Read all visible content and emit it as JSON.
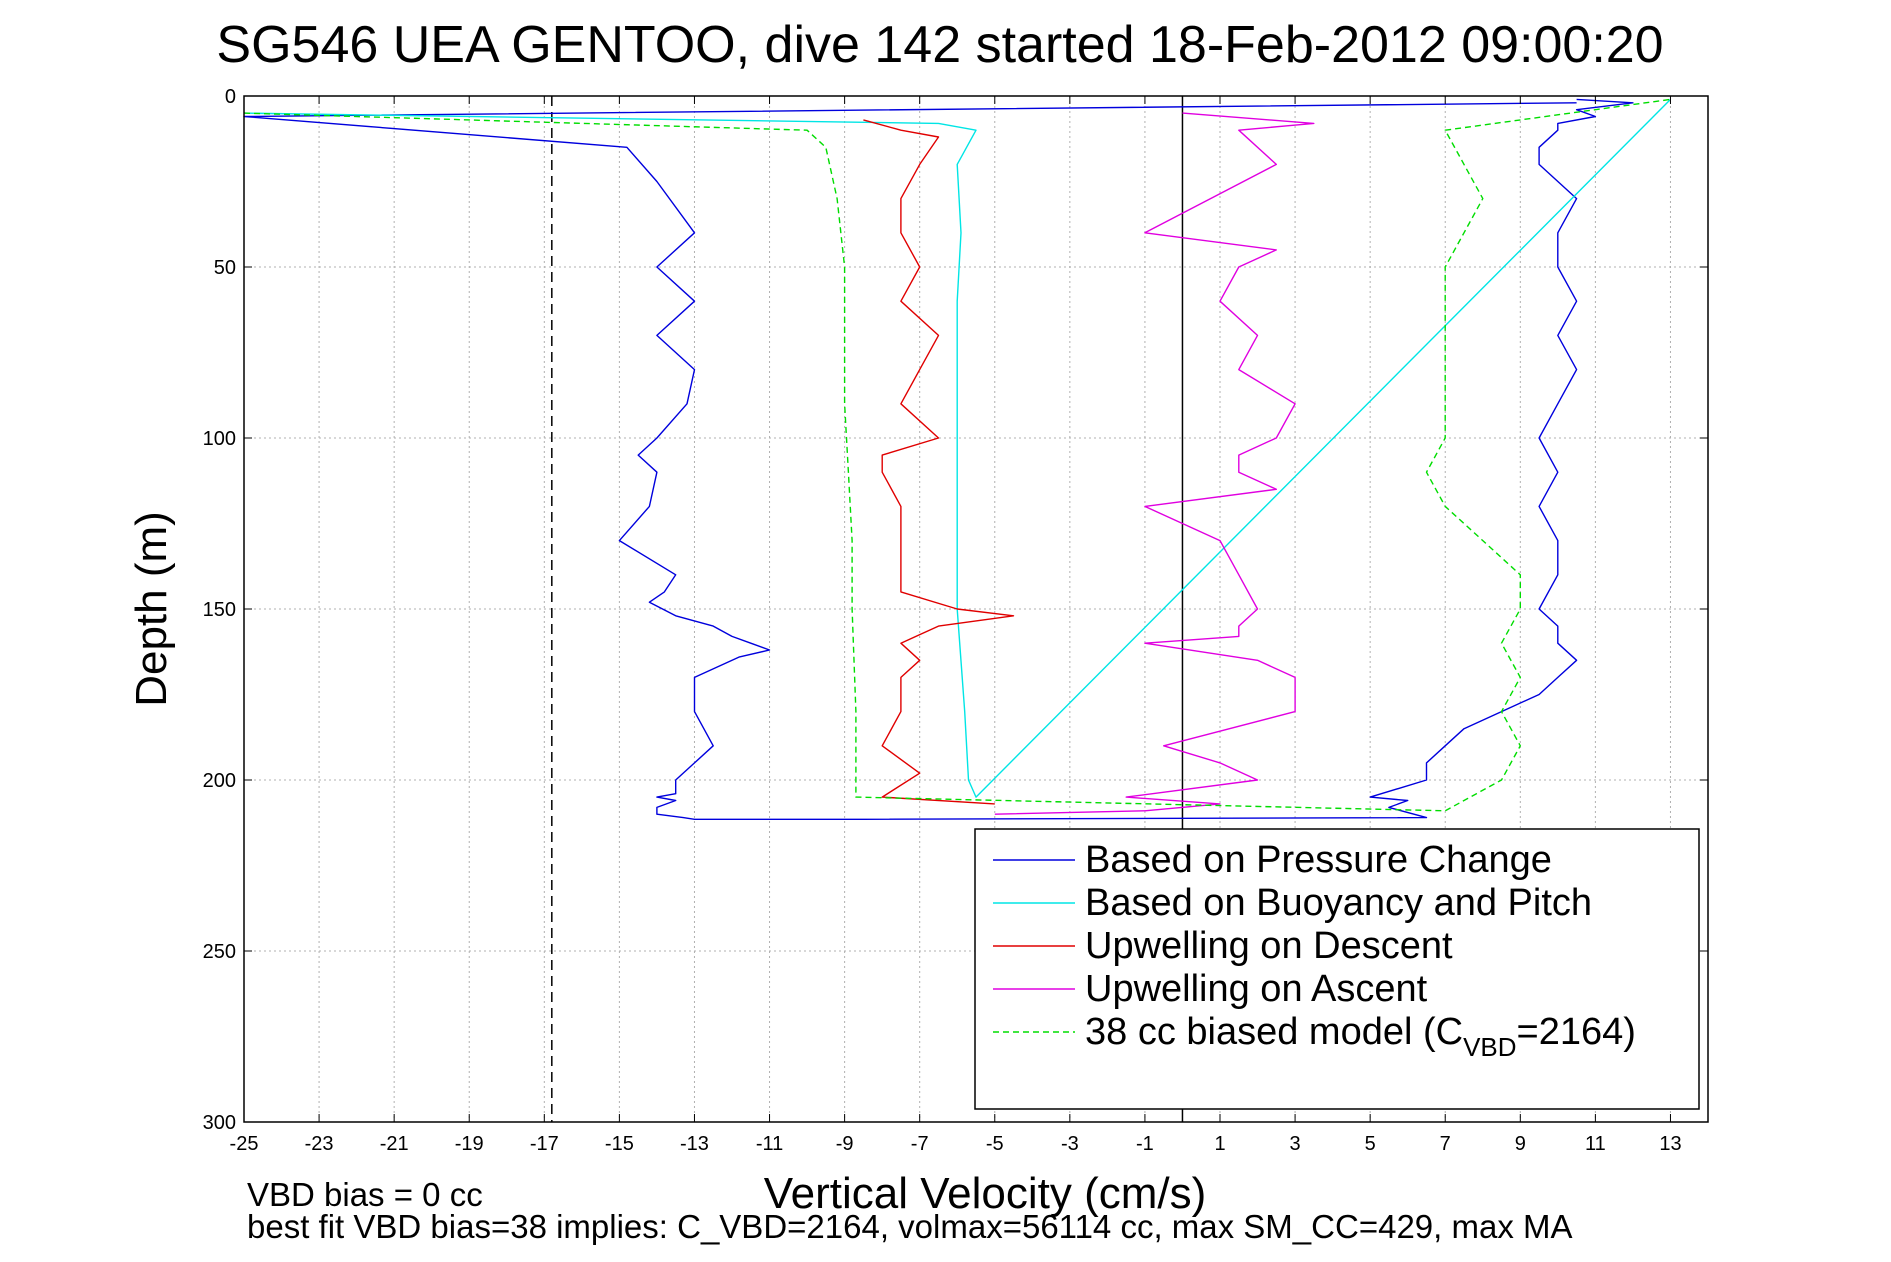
{
  "chart_data": {
    "type": "line",
    "title": "SG546 UEA GENTOO, dive 142 started 18-Feb-2012 09:00:20",
    "xlabel": "Vertical Velocity (cm/s)",
    "ylabel": "Depth (m)",
    "xlim": [
      -25,
      14
    ],
    "ylim": [
      300,
      0
    ],
    "y_reversed": true,
    "grid": true,
    "x_ticks": [
      -25,
      -23,
      -21,
      -19,
      -17,
      -15,
      -13,
      -11,
      -9,
      -7,
      -5,
      -3,
      -1,
      1,
      3,
      5,
      7,
      9,
      11,
      13
    ],
    "y_ticks": [
      0,
      50,
      100,
      150,
      200,
      250,
      300
    ],
    "vertical_lines": [
      {
        "x": -16.8,
        "style": "dashed",
        "color": "#000000"
      },
      {
        "x": 0,
        "style": "solid",
        "color": "#000000"
      }
    ],
    "legend_placement": "bottom-right",
    "series": [
      {
        "name": "Based on Pressure Change",
        "color": "#0000dd",
        "x": [
          10.5,
          -25,
          -14.8,
          -14,
          -13,
          -14,
          -13,
          -14,
          -13,
          -13.2,
          -14,
          -14.5,
          -14,
          -14.2,
          -15,
          -13.5,
          -13.8,
          -14.2,
          -13.5,
          -12.5,
          -12,
          -11.5,
          -11,
          -11.8,
          -13,
          -13,
          -12.5,
          -13,
          -13.5,
          -13.5,
          -14,
          -13.5,
          -14,
          -14,
          -13.3,
          -13,
          -12,
          -10,
          -9,
          -8.5,
          6.5,
          5.5,
          6,
          5,
          6.5,
          6.5,
          7,
          7.5,
          8.5,
          9.5,
          10,
          10.5,
          10,
          10,
          9.5,
          10,
          10,
          9.5,
          10,
          9.5,
          10,
          10.5,
          10,
          10.5,
          10,
          10,
          10.5,
          9.5,
          9.5,
          10,
          10,
          11,
          10.5,
          12,
          10.5
        ],
        "y": [
          2,
          6,
          15,
          25,
          40,
          50,
          60,
          70,
          80,
          90,
          100,
          105,
          110,
          120,
          130,
          140,
          145,
          148,
          152,
          155,
          158,
          160,
          162,
          164,
          170,
          180,
          190,
          195,
          200,
          204,
          205,
          206,
          208,
          210,
          211,
          211.5,
          211.5,
          211.5,
          211.5,
          211.5,
          211,
          208,
          206,
          205,
          200,
          195,
          190,
          185,
          180,
          175,
          170,
          165,
          160,
          155,
          150,
          140,
          130,
          120,
          110,
          100,
          90,
          80,
          70,
          60,
          50,
          40,
          30,
          20,
          15,
          10,
          8,
          6,
          4,
          2,
          1
        ]
      },
      {
        "name": "Based on Buoyancy and Pitch",
        "color": "#00e5e5",
        "x": [
          -25,
          -6.5,
          -5.5,
          -6,
          -5.9,
          -6,
          -6,
          -6,
          -6,
          -5.8,
          -5.7,
          -5.5,
          13
        ],
        "y": [
          5,
          8,
          10,
          20,
          40,
          60,
          90,
          120,
          150,
          180,
          200,
          205,
          1
        ]
      },
      {
        "name": "Upwelling on Descent",
        "color": "#e00000",
        "x": [
          -8.5,
          -7.5,
          -6.5,
          -7,
          -7.5,
          -7.5,
          -7,
          -7.5,
          -6.5,
          -7,
          -7.5,
          -6.5,
          -8,
          -8,
          -7.5,
          -7.5,
          -7.5,
          -7.5,
          -6,
          -4.5,
          -6.5,
          -7.5,
          -7,
          -7.5,
          -7.5,
          -8,
          -7,
          -8,
          -5
        ],
        "y": [
          7,
          10,
          12,
          20,
          30,
          40,
          50,
          60,
          70,
          80,
          90,
          100,
          105,
          110,
          120,
          130,
          140,
          145,
          150,
          152,
          155,
          160,
          165,
          170,
          180,
          190,
          198,
          205,
          207
        ]
      },
      {
        "name": "Upwelling on Ascent",
        "color": "#e000e0",
        "x": [
          0,
          3.5,
          1.5,
          2.5,
          -1,
          2.5,
          1.5,
          1,
          2,
          1.5,
          3,
          2.5,
          1.5,
          1.5,
          2.5,
          -1,
          1,
          1.5,
          2,
          1.5,
          1.5,
          -1,
          2,
          3,
          3,
          -0.5,
          1,
          2,
          -1.5,
          1,
          -1,
          -5
        ],
        "y": [
          5,
          8,
          10,
          20,
          40,
          45,
          50,
          60,
          70,
          80,
          90,
          100,
          105,
          110,
          115,
          120,
          130,
          140,
          150,
          155,
          158,
          160,
          165,
          170,
          180,
          190,
          195,
          200,
          205,
          207,
          209,
          210
        ]
      },
      {
        "name": "38 cc biased model (C",
        "name_subscript": "VBD",
        "name_suffix": "=2164)",
        "color": "#00dd00",
        "dashed": true,
        "x": [
          -25,
          -10,
          -9.5,
          -9.2,
          -9,
          -9,
          -9,
          -8.9,
          -8.8,
          -8.8,
          -8.7,
          -8.7,
          7,
          8.5,
          9,
          8.5,
          9,
          8.5,
          9,
          9,
          8,
          7,
          6.5,
          7,
          7,
          7,
          7,
          7.5,
          8,
          7.5,
          7,
          13
        ],
        "y": [
          5,
          10,
          15,
          30,
          50,
          70,
          90,
          110,
          130,
          150,
          180,
          205,
          209,
          200,
          190,
          180,
          170,
          160,
          150,
          140,
          130,
          120,
          110,
          100,
          80,
          60,
          50,
          40,
          30,
          20,
          10,
          1
        ]
      }
    ]
  },
  "footer": {
    "line1": "VBD bias = 0 cc",
    "line2": "best fit VBD bias=38 implies: C_VBD=2164, volmax=56114 cc, max SM_CC=429, max MA"
  }
}
